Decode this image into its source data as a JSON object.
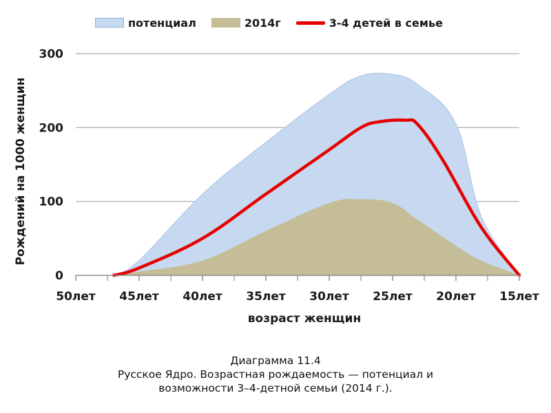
{
  "chart_data": {
    "type": "area",
    "xlabel": "возраст женщин",
    "ylabel": "Рождений на 1000 женщин",
    "ylim": [
      0,
      300
    ],
    "yticks": [
      "0",
      "100",
      "200",
      "300"
    ],
    "xlim": [
      50,
      15
    ],
    "xtick_labels": [
      "50лет",
      "45лет",
      "40лет",
      "35лет",
      "30лет",
      "25лет",
      "20лет",
      "15лет"
    ],
    "grid": true,
    "legend_position": "top",
    "series": [
      {
        "name": "потенциал",
        "kind": "area",
        "color": "#c6d9f1",
        "x": [
          47,
          45,
          40,
          35,
          30,
          27.5,
          25,
          23,
          20,
          18,
          15
        ],
        "values": [
          0,
          20,
          110,
          180,
          245,
          270,
          272,
          258,
          205,
          80,
          0
        ]
      },
      {
        "name": "2014г",
        "kind": "area",
        "color": "#c4bd97",
        "x": [
          47,
          45,
          40,
          35,
          30,
          27.5,
          25,
          23,
          20,
          18,
          15
        ],
        "values": [
          0,
          5,
          20,
          60,
          98,
          103,
          98,
          75,
          40,
          20,
          0
        ]
      },
      {
        "name": "3-4 детей в семье",
        "kind": "line",
        "color": "#e60000",
        "x": [
          47,
          45,
          40,
          35,
          30,
          27.5,
          26,
          24,
          23,
          21,
          18,
          15
        ],
        "values": [
          0,
          10,
          50,
          110,
          170,
          200,
          208,
          210,
          204,
          155,
          65,
          0
        ]
      }
    ]
  },
  "caption": {
    "line1": "Диаграмма 11.4",
    "line2": "Русское Ядро. Возрастная рождаемость — потенциал и",
    "line3": "возможности 3–4-детной семьи (2014 г.)."
  }
}
